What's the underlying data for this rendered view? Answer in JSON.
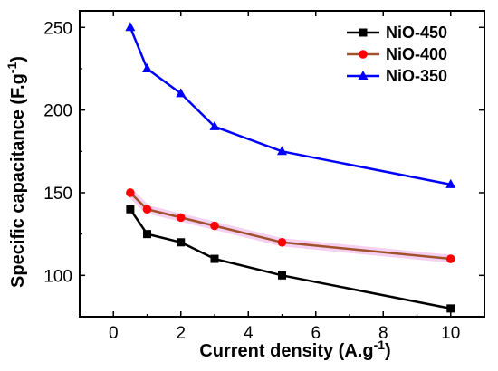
{
  "chart_data": {
    "type": "line",
    "title": "",
    "xlabel": "Current density (A.g",
    "xlabel_sup": "-1",
    "xlabel_close": ")",
    "ylabel": "Specific capacitance (F.g",
    "ylabel_sup": "-1",
    "ylabel_close": ")",
    "xlim": [
      -1,
      11
    ],
    "ylim": [
      75,
      260
    ],
    "xticks": [
      0,
      2,
      4,
      6,
      8,
      10
    ],
    "xtick_labels": [
      "0",
      "2",
      "4",
      "6",
      "8",
      "10"
    ],
    "yticks": [
      100,
      150,
      200,
      250
    ],
    "ytick_labels": [
      "100",
      "150",
      "200",
      "250"
    ],
    "grid": false,
    "legend_position": "top-right",
    "series": [
      {
        "name": "NiO-450",
        "color": "#000000",
        "marker": "square",
        "x": [
          0.5,
          1,
          2,
          3,
          5,
          10
        ],
        "y": [
          140,
          125,
          120,
          110,
          100,
          80
        ]
      },
      {
        "name": "NiO-400",
        "color": "#a0522d",
        "marker_color": "#ff0000",
        "marker": "circle",
        "x": [
          0.5,
          1,
          2,
          3,
          5,
          10
        ],
        "y": [
          150,
          140,
          135,
          130,
          120,
          110
        ]
      },
      {
        "name": "NiO-350",
        "color": "#0000ff",
        "marker": "triangle",
        "x": [
          0.5,
          1,
          2,
          3,
          5,
          10
        ],
        "y": [
          250,
          225,
          210,
          190,
          175,
          155
        ]
      }
    ]
  }
}
